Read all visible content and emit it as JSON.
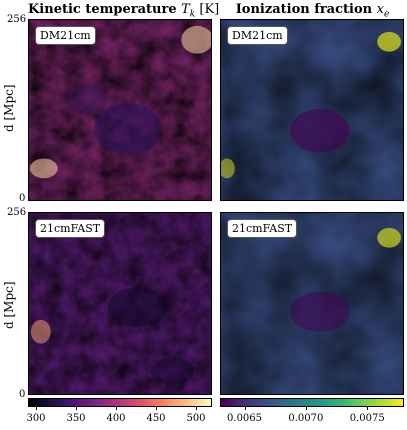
{
  "titles": {
    "left_prefix": "Kinetic temperature ",
    "left_symbol": "T",
    "left_sub": "k",
    "left_unit": " [K]",
    "right_prefix": "Ionization fraction ",
    "right_symbol": "x",
    "right_sub": "e"
  },
  "labels": {
    "top_row": "DM21cm",
    "bottom_row": "21cmFAST"
  },
  "axes": {
    "ylabel": "d [Mpc]",
    "ytick_top": "256",
    "ytick_bottom": "0"
  },
  "colorbars": {
    "temperature_ticks": [
      "300",
      "350",
      "400",
      "450",
      "500"
    ],
    "ionization_ticks": [
      "0.0065",
      "0.0070",
      "0.0075"
    ]
  },
  "chart_data": [
    {
      "type": "heatmap",
      "title": "Kinetic temperature T_k [K]",
      "ylabel": "d [Mpc]",
      "ylim": [
        0,
        256
      ],
      "rows": [
        "DM21cm",
        "21cmFAST"
      ],
      "colormap": "magma",
      "color_range": [
        290,
        520
      ],
      "colorbar_ticks": [
        300,
        350,
        400,
        450,
        500
      ]
    },
    {
      "type": "heatmap",
      "title": "Ionization fraction x_e",
      "ylim": [
        0,
        256
      ],
      "rows": [
        "DM21cm",
        "21cmFAST"
      ],
      "colormap": "viridis",
      "color_range": [
        0.0063,
        0.0078
      ],
      "colorbar_ticks": [
        0.0065,
        0.007,
        0.0075
      ]
    }
  ],
  "colors": {
    "magma_low": "#0d0829",
    "magma_mid": "#b73779",
    "magma_high": "#fcfdbf",
    "viridis_low": "#440154",
    "viridis_mid": "#21918c",
    "viridis_high": "#fde725"
  }
}
